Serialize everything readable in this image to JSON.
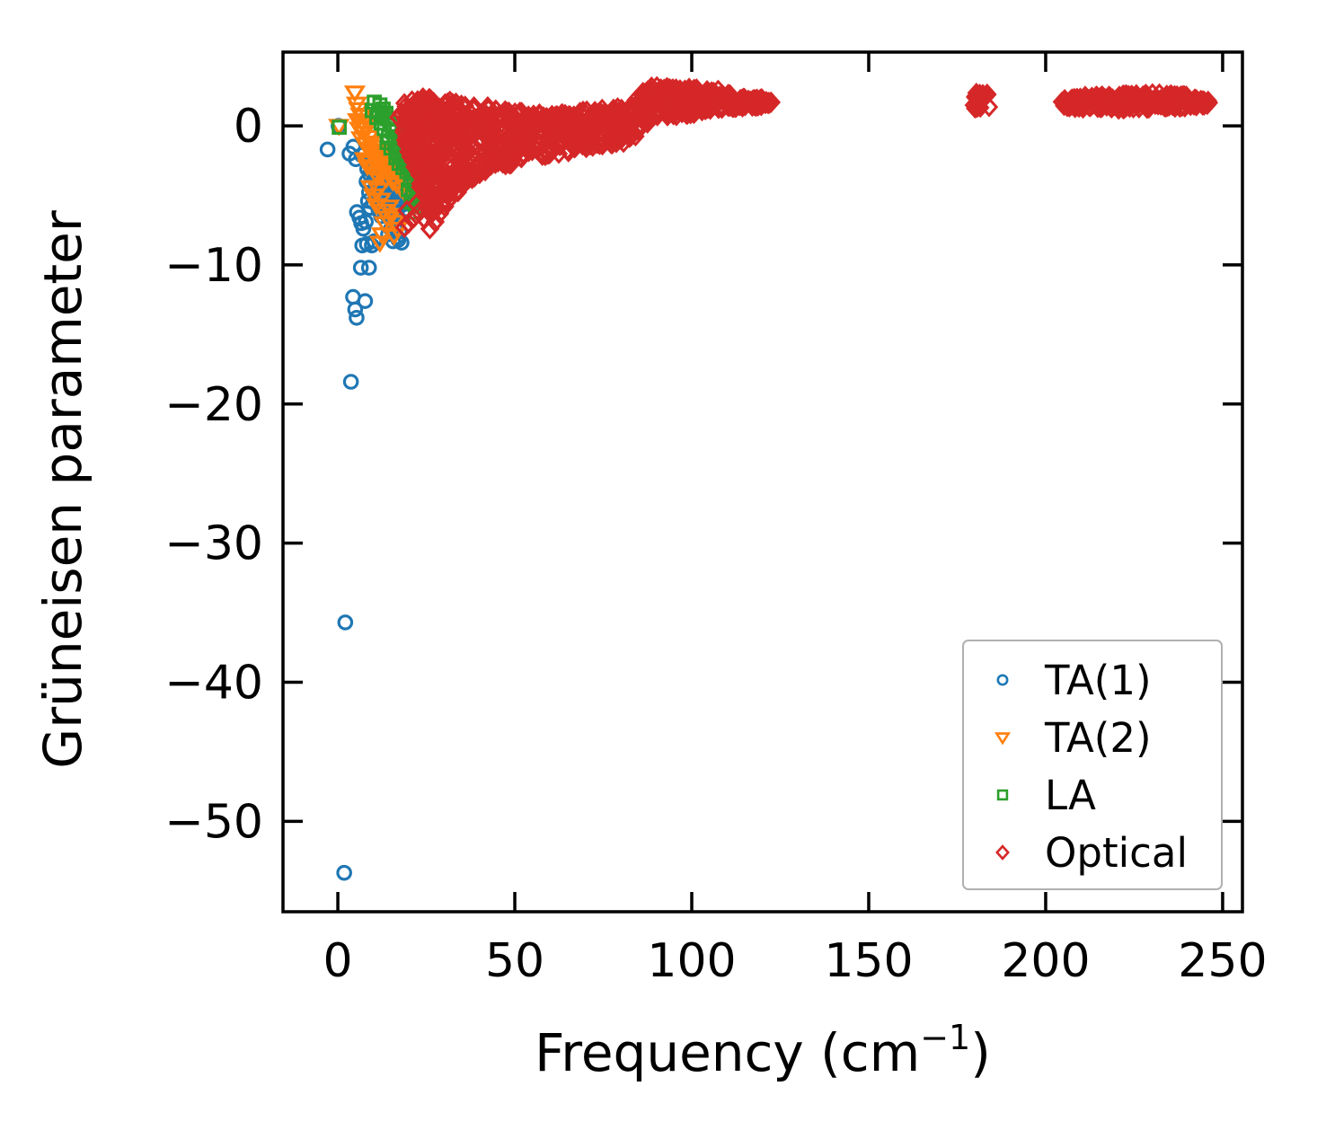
{
  "figure": {
    "background": "#ffffff"
  },
  "chart_data": {
    "type": "scatter",
    "title": "",
    "xlabel": {
      "pre": "Frequency (cm",
      "sup": "−1",
      "post": ")"
    },
    "ylabel": "Grüneisen parameter",
    "xlim": [
      -15.5,
      255.6
    ],
    "ylim": [
      -56.5,
      5.3
    ],
    "xticks": [
      {
        "v": 0,
        "label": "0"
      },
      {
        "v": 50,
        "label": "50"
      },
      {
        "v": 100,
        "label": "100"
      },
      {
        "v": 150,
        "label": "150"
      },
      {
        "v": 200,
        "label": "200"
      },
      {
        "v": 250,
        "label": "250"
      }
    ],
    "yticks": [
      {
        "v": 0,
        "label": "0"
      },
      {
        "v": -10,
        "label": "−10"
      },
      {
        "v": -20,
        "label": "−20"
      },
      {
        "v": -30,
        "label": "−30"
      },
      {
        "v": -40,
        "label": "−40"
      },
      {
        "v": -50,
        "label": "−50"
      }
    ],
    "grid": false,
    "legend_position": "lower right",
    "seed": 20240715,
    "series": [
      {
        "name": "TA(1)",
        "marker": "circle",
        "color": "#1f77b4",
        "points": [
          [
            -2.9,
            -1.7
          ],
          [
            0.2,
            0.0
          ],
          [
            3.3,
            -2.0
          ],
          [
            4.4,
            -1.5
          ],
          [
            5.1,
            -2.4
          ],
          [
            6.7,
            -2.1
          ],
          [
            7.6,
            -1.9
          ],
          [
            9.2,
            -2.3
          ],
          [
            10.4,
            -2.1
          ],
          [
            11.6,
            -2.4
          ],
          [
            12.8,
            -2.2
          ],
          [
            13.9,
            -2.6
          ],
          [
            15.1,
            -2.3
          ],
          [
            16.2,
            -2.7
          ],
          [
            17.4,
            -2.5
          ],
          [
            18.6,
            -2.9
          ],
          [
            19.8,
            -3.0
          ],
          [
            20.7,
            -3.3
          ],
          [
            21.2,
            -3.8
          ],
          [
            8.3,
            -3.1
          ],
          [
            9.0,
            -3.5
          ],
          [
            9.7,
            -3.2
          ],
          [
            10.2,
            -3.8
          ],
          [
            10.9,
            -3.4
          ],
          [
            11.3,
            -4.0
          ],
          [
            11.8,
            -3.6
          ],
          [
            12.3,
            -4.3
          ],
          [
            12.7,
            -3.9
          ],
          [
            13.2,
            -4.6
          ],
          [
            13.6,
            -3.4
          ],
          [
            14.0,
            -4.1
          ],
          [
            14.4,
            -4.8
          ],
          [
            14.8,
            -3.7
          ],
          [
            15.3,
            -4.4
          ],
          [
            15.7,
            -5.1
          ],
          [
            16.1,
            -3.9
          ],
          [
            16.5,
            -4.6
          ],
          [
            16.9,
            -5.3
          ],
          [
            17.3,
            -4.1
          ],
          [
            17.7,
            -4.9
          ],
          [
            18.1,
            -5.5
          ],
          [
            18.5,
            -4.4
          ],
          [
            18.9,
            -5.0
          ],
          [
            19.3,
            -5.6
          ],
          [
            12.0,
            -5.1
          ],
          [
            12.6,
            -5.7
          ],
          [
            13.3,
            -5.3
          ],
          [
            14.1,
            -5.9
          ],
          [
            14.7,
            -5.4
          ],
          [
            15.4,
            -6.0
          ],
          [
            16.0,
            -5.7
          ],
          [
            16.6,
            -6.2
          ],
          [
            17.2,
            -5.9
          ],
          [
            10.6,
            -4.5
          ],
          [
            11.1,
            -5.0
          ],
          [
            9.4,
            -4.2
          ],
          [
            8.8,
            -4.8
          ],
          [
            8.1,
            -4.0
          ],
          [
            13.8,
            -6.4
          ],
          [
            14.9,
            -6.6
          ],
          [
            15.8,
            -6.8
          ],
          [
            16.4,
            -6.5
          ],
          [
            17.0,
            -6.7
          ],
          [
            10.0,
            -5.5
          ],
          [
            9.1,
            -5.9
          ],
          [
            8.5,
            -5.4
          ],
          [
            11.5,
            -6.1
          ],
          [
            12.2,
            -6.5
          ],
          [
            13.0,
            -6.1
          ],
          [
            19.6,
            -6.0
          ],
          [
            20.1,
            -5.2
          ],
          [
            20.5,
            -4.6
          ],
          [
            19.0,
            -4.0
          ],
          [
            18.3,
            -3.5
          ],
          [
            16.2,
            -7.3
          ],
          [
            17.5,
            -7.6
          ],
          [
            15.0,
            -7.4
          ],
          [
            14.2,
            -7.8
          ],
          [
            16.8,
            -8.0
          ],
          [
            15.6,
            -8.3
          ],
          [
            18.0,
            -8.4
          ],
          [
            17.1,
            -8.2
          ],
          [
            6.6,
            -7.0
          ],
          [
            7.2,
            -7.4
          ],
          [
            6.1,
            -6.6
          ],
          [
            5.4,
            -6.2
          ],
          [
            7.9,
            -6.9
          ],
          [
            6.9,
            -8.6
          ],
          [
            8.2,
            -8.5
          ],
          [
            9.6,
            -8.6
          ],
          [
            10.3,
            -8.3
          ],
          [
            6.5,
            -10.2
          ],
          [
            8.8,
            -10.2
          ],
          [
            7.7,
            -12.6
          ],
          [
            4.3,
            -12.3
          ],
          [
            4.9,
            -13.2
          ],
          [
            5.3,
            -13.8
          ],
          [
            3.7,
            -18.4
          ],
          [
            2.1,
            -35.7
          ],
          [
            1.8,
            -53.7
          ]
        ],
        "bands": []
      },
      {
        "name": "TA(2)",
        "marker": "triangle-down",
        "color": "#ff7f0e",
        "points": [
          [
            4.8,
            2.4
          ],
          [
            0.3,
            0.0
          ],
          [
            5.3,
            1.6
          ],
          [
            5.9,
            1.2
          ],
          [
            6.4,
            0.8
          ],
          [
            5.6,
            0.4
          ],
          [
            6.9,
            0.2
          ],
          [
            6.1,
            -0.2
          ],
          [
            7.4,
            -0.5
          ],
          [
            6.6,
            -0.9
          ],
          [
            7.8,
            -0.1
          ],
          [
            8.3,
            0.3
          ],
          [
            7.1,
            0.7
          ],
          [
            8.8,
            -0.8
          ],
          [
            8.0,
            -1.3
          ],
          [
            8.6,
            -1.7
          ],
          [
            9.2,
            -1.2
          ],
          [
            9.7,
            -1.9
          ],
          [
            10.2,
            -1.5
          ],
          [
            10.8,
            -2.2
          ],
          [
            11.3,
            -1.8
          ],
          [
            11.9,
            -2.5
          ],
          [
            12.4,
            -2.0
          ],
          [
            13.0,
            -2.7
          ],
          [
            13.5,
            -2.2
          ],
          [
            14.1,
            -2.9
          ],
          [
            14.6,
            -2.4
          ],
          [
            15.2,
            -3.1
          ],
          [
            15.7,
            -2.6
          ],
          [
            16.3,
            -3.3
          ],
          [
            16.9,
            -2.8
          ],
          [
            17.4,
            -3.6
          ],
          [
            9.0,
            -2.6
          ],
          [
            9.9,
            -3.0
          ],
          [
            10.5,
            -3.4
          ],
          [
            11.1,
            -3.0
          ],
          [
            12.1,
            -3.5
          ],
          [
            12.9,
            -3.2
          ],
          [
            13.7,
            -3.8
          ],
          [
            14.8,
            -3.5
          ],
          [
            15.5,
            -4.0
          ],
          [
            16.6,
            -4.2
          ],
          [
            8.4,
            -2.9
          ],
          [
            7.6,
            -2.4
          ],
          [
            17.8,
            -4.5
          ],
          [
            18.4,
            -4.1
          ],
          [
            18.9,
            -4.8
          ],
          [
            11.5,
            -4.6
          ],
          [
            12.2,
            -5.3
          ],
          [
            12.8,
            -6.1
          ],
          [
            13.1,
            -7.0
          ],
          [
            12.4,
            -7.8
          ],
          [
            11.9,
            -8.4
          ],
          [
            14.5,
            -5.8
          ],
          [
            15.3,
            -6.4
          ],
          [
            16.1,
            -6.9
          ],
          [
            13.9,
            -6.6
          ],
          [
            10.9,
            -5.7
          ],
          [
            10.1,
            -5.0
          ],
          [
            9.3,
            -4.4
          ],
          [
            16.8,
            -7.4
          ],
          [
            15.9,
            -7.9
          ]
        ],
        "bands": []
      },
      {
        "name": "LA",
        "marker": "square",
        "color": "#2ca02c",
        "points": [
          [
            0.4,
            -0.1
          ],
          [
            10.3,
            1.7
          ],
          [
            11.9,
            1.5
          ],
          [
            9.7,
            1.1
          ],
          [
            12.8,
            1.2
          ],
          [
            13.6,
            0.9
          ],
          [
            11.0,
            0.6
          ],
          [
            12.2,
            0.2
          ],
          [
            13.1,
            -0.2
          ],
          [
            14.0,
            0.5
          ],
          [
            14.7,
            0.1
          ],
          [
            15.4,
            -0.4
          ],
          [
            14.3,
            -0.8
          ],
          [
            15.9,
            -0.9
          ],
          [
            16.5,
            -0.3
          ],
          [
            16.1,
            -1.3
          ],
          [
            17.0,
            -0.8
          ],
          [
            17.6,
            -1.4
          ],
          [
            16.8,
            -1.9
          ],
          [
            18.1,
            -1.0
          ],
          [
            18.7,
            -1.6
          ],
          [
            17.9,
            -2.2
          ],
          [
            19.2,
            -1.2
          ],
          [
            19.7,
            -1.8
          ],
          [
            19.0,
            -2.5
          ],
          [
            20.2,
            -1.5
          ],
          [
            20.8,
            -2.1
          ],
          [
            20.0,
            -2.8
          ],
          [
            21.3,
            -1.7
          ],
          [
            21.8,
            -2.4
          ],
          [
            21.0,
            -3.1
          ],
          [
            22.3,
            -1.9
          ],
          [
            22.8,
            -2.6
          ],
          [
            22.0,
            -3.4
          ],
          [
            23.3,
            -2.2
          ],
          [
            23.8,
            -2.9
          ],
          [
            23.0,
            -3.7
          ],
          [
            19.5,
            -3.3
          ],
          [
            20.5,
            -3.9
          ],
          [
            21.5,
            -4.2
          ],
          [
            22.5,
            -4.5
          ],
          [
            23.5,
            -4.1
          ],
          [
            18.4,
            -3.0
          ],
          [
            17.3,
            -2.7
          ],
          [
            19.9,
            -4.6
          ],
          [
            21.1,
            -4.9
          ],
          [
            22.1,
            -5.2
          ],
          [
            23.1,
            -5.0
          ],
          [
            20.7,
            -5.5
          ],
          [
            22.7,
            -5.8
          ],
          [
            21.9,
            -6.2
          ],
          [
            23.6,
            -5.5
          ],
          [
            12.5,
            0.8
          ],
          [
            13.9,
            -1.2
          ],
          [
            15.0,
            -1.6
          ],
          [
            16.4,
            -2.3
          ],
          [
            11.5,
            1.0
          ],
          [
            24.1,
            -3.3
          ],
          [
            24.4,
            -2.5
          ],
          [
            23.9,
            -4.7
          ]
        ],
        "bands": []
      },
      {
        "name": "Optical",
        "marker": "diamond",
        "color": "#d62728",
        "points": [
          [
            17.2,
            0.6
          ],
          [
            18.0,
            0.9
          ],
          [
            18.8,
            -7.3
          ],
          [
            20.0,
            -7.0
          ],
          [
            21.5,
            -6.6
          ],
          [
            23.0,
            -6.2
          ],
          [
            24.5,
            -6.7
          ],
          [
            26.0,
            -7.4
          ],
          [
            27.5,
            -6.9
          ],
          [
            25.2,
            -5.9
          ],
          [
            22.2,
            -5.6
          ],
          [
            19.5,
            -6.1
          ],
          [
            28.8,
            -6.3
          ],
          [
            30.2,
            -5.8
          ],
          [
            31.8,
            -5.2
          ],
          [
            33.5,
            -4.7
          ],
          [
            35.2,
            -4.3
          ],
          [
            37.0,
            -3.8
          ],
          [
            38.8,
            -3.4
          ],
          [
            40.5,
            -3.1
          ],
          [
            42.5,
            -2.9
          ],
          [
            44.5,
            -2.7
          ],
          [
            121.8,
            1.6
          ],
          [
            122.4,
            1.7
          ],
          [
            182.0,
            1.9
          ]
        ],
        "bands": [
          {
            "x0": 18.5,
            "x1": 26.5,
            "t0": 1.7,
            "t1": 2.2,
            "b0": -1.0,
            "b1": -6.8,
            "n": 150
          },
          {
            "x0": 26.5,
            "x1": 36.5,
            "t0": 2.1,
            "t1": 1.7,
            "b0": -6.5,
            "b1": -4.2,
            "n": 160
          },
          {
            "x0": 36.5,
            "x1": 52.0,
            "t0": 1.6,
            "t1": 1.1,
            "b0": -4.0,
            "b1": -2.5,
            "n": 160
          },
          {
            "x0": 52.0,
            "x1": 68.0,
            "t0": 1.0,
            "t1": 0.9,
            "b0": -2.4,
            "b1": -1.9,
            "n": 140
          },
          {
            "x0": 68.0,
            "x1": 84.0,
            "t0": 1.1,
            "t1": 1.5,
            "b0": -1.8,
            "b1": -1.1,
            "n": 140
          },
          {
            "x0": 84.0,
            "x1": 88.0,
            "t0": 2.3,
            "t1": 2.7,
            "b0": -0.8,
            "b1": 0.3,
            "n": 50
          },
          {
            "x0": 88.0,
            "x1": 108.0,
            "t0": 2.9,
            "t1": 2.6,
            "b0": 0.4,
            "b1": 1.1,
            "n": 170
          },
          {
            "x0": 108.0,
            "x1": 120.0,
            "t0": 2.4,
            "t1": 2.0,
            "b0": 1.2,
            "b1": 1.4,
            "n": 90
          },
          {
            "x0": 120.0,
            "x1": 122.5,
            "t0": 1.9,
            "t1": 1.7,
            "b0": 1.4,
            "b1": 1.55,
            "n": 15
          },
          {
            "x0": 179.5,
            "x1": 184.5,
            "t0": 2.4,
            "t1": 2.3,
            "b0": 1.2,
            "b1": 1.3,
            "n": 25
          },
          {
            "x0": 204.5,
            "x1": 212.0,
            "t0": 1.9,
            "t1": 2.2,
            "b0": 1.3,
            "b1": 1.2,
            "n": 60
          },
          {
            "x0": 212.0,
            "x1": 228.0,
            "t0": 2.2,
            "t1": 2.3,
            "b0": 1.1,
            "b1": 1.2,
            "n": 110
          },
          {
            "x0": 228.0,
            "x1": 240.0,
            "t0": 2.4,
            "t1": 2.2,
            "b0": 1.2,
            "b1": 1.3,
            "n": 90
          },
          {
            "x0": 240.0,
            "x1": 246.5,
            "t0": 2.1,
            "t1": 1.8,
            "b0": 1.3,
            "b1": 1.5,
            "n": 40
          }
        ]
      }
    ],
    "legend": {
      "frame_color": "#b0b0b0"
    }
  }
}
